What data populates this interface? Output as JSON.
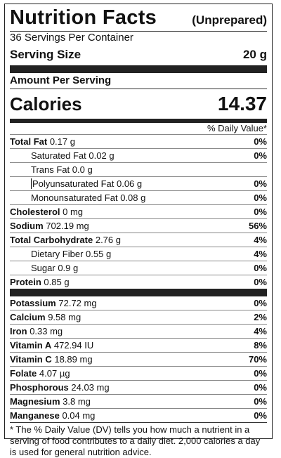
{
  "header": {
    "title": "Nutrition Facts",
    "subtitle": "(Unprepared)",
    "servings_per_container": "36 Servings Per Container",
    "serving_size_label": "Serving Size",
    "serving_size_value": "20 g"
  },
  "amount_per_serving": "Amount Per Serving",
  "calories": {
    "label": "Calories",
    "value": "14.37"
  },
  "daily_value_header": "% Daily Value*",
  "nutrients": [
    {
      "name": "Total Fat",
      "amount": "0.17 g",
      "pct": "0%"
    },
    {
      "name": "Saturated Fat",
      "amount": "0.02 g",
      "pct": "0%"
    },
    {
      "name": "Trans Fat",
      "amount": "0.0 g",
      "pct": ""
    },
    {
      "name": "Polyunsaturated Fat",
      "amount": "0.06 g",
      "pct": "0%"
    },
    {
      "name": "Monounsaturated Fat",
      "amount": "0.08 g",
      "pct": "0%"
    },
    {
      "name": "Cholesterol",
      "amount": "0 mg",
      "pct": "0%"
    },
    {
      "name": "Sodium",
      "amount": "702.19 mg",
      "pct": "56%"
    },
    {
      "name": "Total Carbohydrate",
      "amount": "2.76 g",
      "pct": "4%"
    },
    {
      "name": "Dietary Fiber",
      "amount": "0.55 g",
      "pct": "4%"
    },
    {
      "name": "Sugar",
      "amount": "0.9 g",
      "pct": "0%"
    },
    {
      "name": "Protein",
      "amount": "0.85 g",
      "pct": "0%"
    }
  ],
  "minerals": [
    {
      "name": "Potassium",
      "amount": "72.72 mg",
      "pct": "0%"
    },
    {
      "name": "Calcium",
      "amount": "9.58 mg",
      "pct": "2%"
    },
    {
      "name": "Iron",
      "amount": "0.33 mg",
      "pct": "4%"
    },
    {
      "name": "Vitamin A",
      "amount": "472.94 IU",
      "pct": "8%"
    },
    {
      "name": "Vitamin C",
      "amount": "18.89 mg",
      "pct": "70%"
    },
    {
      "name": "Folate",
      "amount": "4.07 µg",
      "pct": "0%"
    },
    {
      "name": "Phosphorous",
      "amount": "24.03 mg",
      "pct": "0%"
    },
    {
      "name": "Magnesium",
      "amount": "3.8 mg",
      "pct": "0%"
    },
    {
      "name": "Manganese",
      "amount": "0.04 mg",
      "pct": "0%"
    }
  ],
  "footnote": "* The % Daily Value (DV) tells you how much a nutrient in a serving of food contributes to a daily diet. 2,000 calories a day is used for general nutrition advice."
}
